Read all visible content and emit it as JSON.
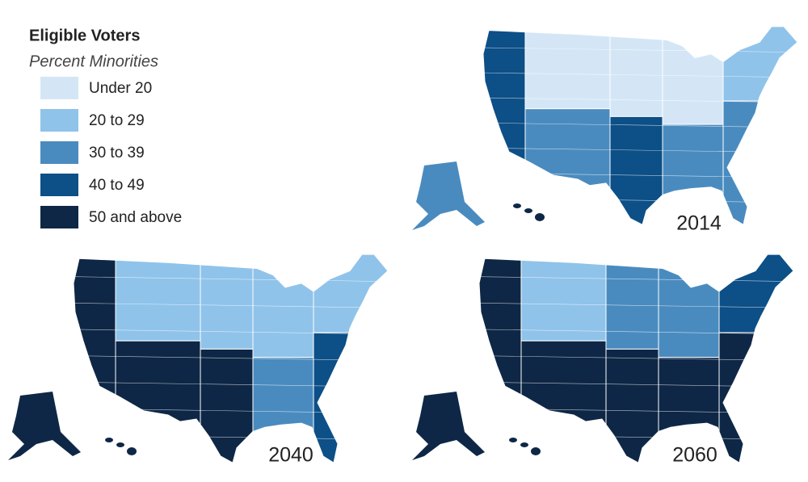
{
  "legend": {
    "title": "Eligible Voters",
    "subtitle": "Percent Minorities",
    "items": [
      {
        "label": "Under 20",
        "color": "#d4e6f6"
      },
      {
        "label": "20 to 29",
        "color": "#8fc3ea"
      },
      {
        "label": "30 to 39",
        "color": "#4a8bbf"
      },
      {
        "label": "40 to 49",
        "color": "#0d4f87"
      },
      {
        "label": "50 and above",
        "color": "#0e2746"
      }
    ]
  },
  "maps": [
    {
      "year": "2014"
    },
    {
      "year": "2040"
    },
    {
      "year": "2060"
    }
  ]
}
